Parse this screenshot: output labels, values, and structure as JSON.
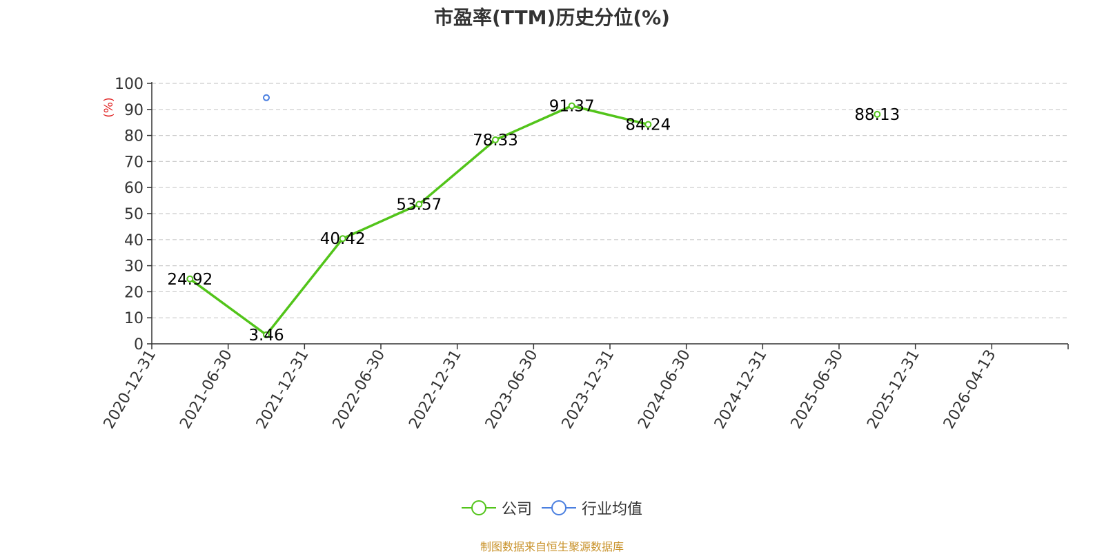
{
  "chart_data": {
    "type": "line",
    "title": "市盈率(TTM)历史分位(%)",
    "ylabel": "(%)",
    "ylim": [
      0,
      100
    ],
    "yticks": [
      0,
      10,
      20,
      30,
      40,
      50,
      60,
      70,
      80,
      90,
      100
    ],
    "categories": [
      "2020-12-31",
      "2021-06-30",
      "2021-12-31",
      "2022-06-30",
      "2022-12-31",
      "2023-06-30",
      "2023-12-31",
      "2024-06-30",
      "2024-12-31",
      "2025-06-30",
      "2025-12-31",
      "2026-04-13"
    ],
    "series": [
      {
        "name": "公司",
        "color": "#52c41a",
        "values": [
          24.92,
          3.46,
          40.42,
          53.57,
          78.33,
          91.37,
          84.24,
          null,
          null,
          88.13,
          null,
          null
        ],
        "labels": [
          "24.92",
          "3.46",
          "40.42",
          "53.57",
          "78.33",
          "91.37",
          "84.24",
          null,
          null,
          "88.13",
          null,
          null
        ]
      },
      {
        "name": "行业均值",
        "color": "#4a7fe0",
        "values": [
          null,
          94.5,
          null,
          null,
          null,
          null,
          null,
          null,
          null,
          null,
          null,
          null
        ],
        "labels": [
          null,
          null,
          null,
          null,
          null,
          null,
          null,
          null,
          null,
          null,
          null,
          null
        ]
      }
    ],
    "grid": true,
    "legend": "bottom-center"
  },
  "source_note": "制图数据来自恒生聚源数据库"
}
